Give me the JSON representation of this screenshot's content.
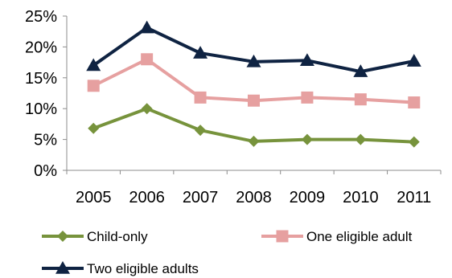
{
  "chart_data": {
    "type": "line",
    "title": "",
    "xlabel": "",
    "ylabel": "",
    "categories": [
      "2005",
      "2006",
      "2007",
      "2008",
      "2009",
      "2010",
      "2011"
    ],
    "ylim": [
      0,
      25
    ],
    "yticks": [
      0,
      5,
      10,
      15,
      20,
      25
    ],
    "ytick_labels": [
      "0%",
      "5%",
      "10%",
      "15%",
      "20%",
      "25%"
    ],
    "grid": false,
    "legend_position": "bottom",
    "series": [
      {
        "name": "Child-only",
        "values": [
          6.8,
          10.0,
          6.5,
          4.7,
          5.0,
          5.0,
          4.6
        ],
        "color": "#77933c",
        "marker": "diamond"
      },
      {
        "name": "One eligible adult",
        "values": [
          13.7,
          18.0,
          11.8,
          11.3,
          11.8,
          11.5,
          11.0
        ],
        "color": "#e6a0a0",
        "marker": "square"
      },
      {
        "name": "Two eligible adults",
        "values": [
          17.0,
          23.1,
          19.0,
          17.6,
          17.8,
          16.0,
          17.7
        ],
        "color": "#0f2342",
        "marker": "triangle"
      }
    ]
  }
}
